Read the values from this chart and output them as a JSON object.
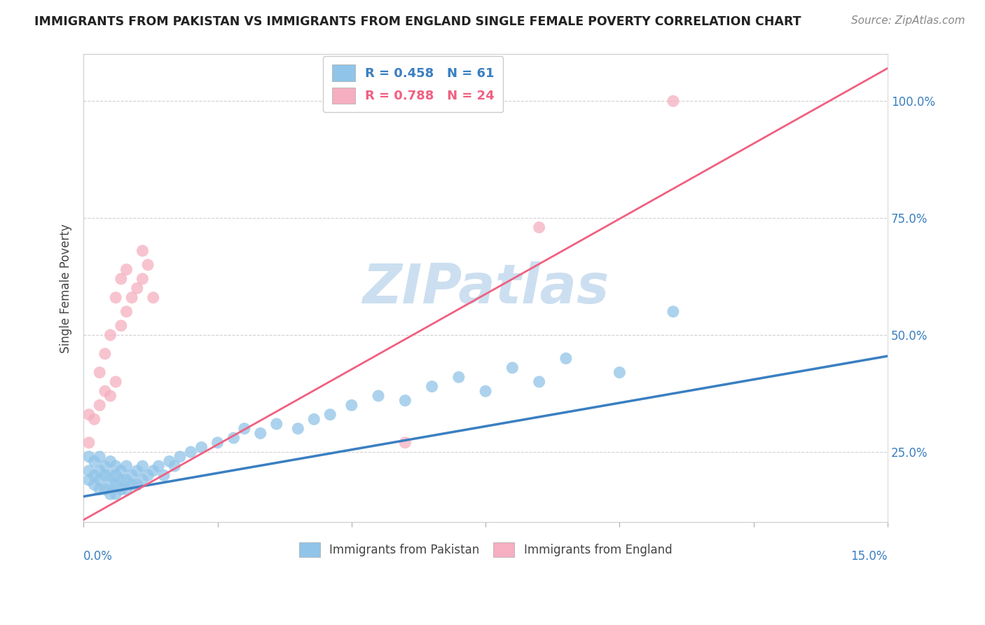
{
  "title": "IMMIGRANTS FROM PAKISTAN VS IMMIGRANTS FROM ENGLAND SINGLE FEMALE POVERTY CORRELATION CHART",
  "source": "Source: ZipAtlas.com",
  "ylabel": "Single Female Poverty",
  "right_yticklabels": [
    "25.0%",
    "50.0%",
    "75.0%",
    "100.0%"
  ],
  "right_ytick_vals": [
    0.25,
    0.5,
    0.75,
    1.0
  ],
  "legend_line1": "R = 0.458   N = 61",
  "legend_line2": "R = 0.788   N = 24",
  "blue_color": "#90c4e8",
  "pink_color": "#f5afc0",
  "blue_line_color": "#3a7fc1",
  "pink_line_color": "#f06080",
  "watermark_color": "#ccdff0",
  "xlim": [
    0.0,
    0.15
  ],
  "ylim": [
    0.1,
    1.1
  ],
  "blue_line": {
    "x0": 0.0,
    "y0": 0.155,
    "x1": 0.15,
    "y1": 0.455
  },
  "pink_line": {
    "x0": 0.0,
    "y0": 0.105,
    "x1": 0.15,
    "y1": 1.07
  },
  "blue_x": [
    0.001,
    0.001,
    0.001,
    0.002,
    0.002,
    0.002,
    0.003,
    0.003,
    0.003,
    0.003,
    0.004,
    0.004,
    0.004,
    0.005,
    0.005,
    0.005,
    0.005,
    0.006,
    0.006,
    0.006,
    0.006,
    0.007,
    0.007,
    0.007,
    0.008,
    0.008,
    0.008,
    0.009,
    0.009,
    0.01,
    0.01,
    0.011,
    0.011,
    0.012,
    0.013,
    0.014,
    0.015,
    0.016,
    0.017,
    0.018,
    0.02,
    0.022,
    0.025,
    0.028,
    0.03,
    0.033,
    0.036,
    0.04,
    0.043,
    0.046,
    0.05,
    0.055,
    0.06,
    0.065,
    0.07,
    0.075,
    0.08,
    0.085,
    0.09,
    0.1,
    0.11
  ],
  "blue_y": [
    0.19,
    0.21,
    0.24,
    0.18,
    0.2,
    0.23,
    0.17,
    0.19,
    0.21,
    0.24,
    0.17,
    0.2,
    0.22,
    0.16,
    0.18,
    0.2,
    0.23,
    0.16,
    0.18,
    0.2,
    0.22,
    0.17,
    0.19,
    0.21,
    0.17,
    0.19,
    0.22,
    0.18,
    0.2,
    0.18,
    0.21,
    0.19,
    0.22,
    0.2,
    0.21,
    0.22,
    0.2,
    0.23,
    0.22,
    0.24,
    0.25,
    0.26,
    0.27,
    0.28,
    0.3,
    0.29,
    0.31,
    0.3,
    0.32,
    0.33,
    0.35,
    0.37,
    0.36,
    0.39,
    0.41,
    0.38,
    0.43,
    0.4,
    0.45,
    0.42,
    0.55
  ],
  "pink_x": [
    0.001,
    0.001,
    0.002,
    0.003,
    0.003,
    0.004,
    0.004,
    0.005,
    0.005,
    0.006,
    0.006,
    0.007,
    0.007,
    0.008,
    0.008,
    0.009,
    0.01,
    0.011,
    0.011,
    0.012,
    0.013,
    0.06,
    0.085,
    0.11
  ],
  "pink_y": [
    0.27,
    0.33,
    0.32,
    0.35,
    0.42,
    0.38,
    0.46,
    0.37,
    0.5,
    0.4,
    0.58,
    0.52,
    0.62,
    0.55,
    0.64,
    0.58,
    0.6,
    0.62,
    0.68,
    0.65,
    0.58,
    0.27,
    0.73,
    1.0
  ],
  "bottom_legend": [
    "Immigrants from Pakistan",
    "Immigrants from England"
  ]
}
